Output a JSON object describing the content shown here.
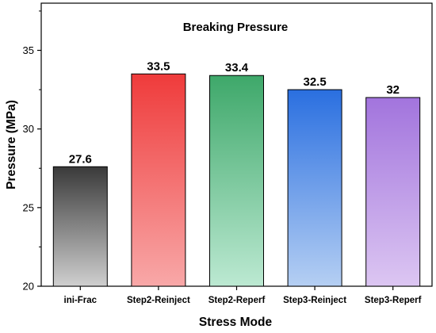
{
  "chart_data": {
    "type": "bar",
    "title": "Breaking Pressure",
    "xlabel": "Stress Mode",
    "ylabel": "Pressure (MPa)",
    "ylim": [
      20,
      38
    ],
    "yticks": [
      20,
      25,
      30,
      35
    ],
    "categories": [
      "ini-Frac",
      "Step2-Reinject",
      "Step2-Reperf",
      "Step3-Reinject",
      "Step3-Reperf"
    ],
    "values": [
      27.6,
      33.5,
      33.4,
      32.5,
      32
    ],
    "value_labels": [
      "27.6",
      "33.5",
      "33.4",
      "32.5",
      "32"
    ],
    "bar_colors": [
      {
        "top": "#3a3a3a",
        "bottom": "#cfcfcf"
      },
      {
        "top": "#ef3b3b",
        "bottom": "#f8a8a8"
      },
      {
        "top": "#3ea86a",
        "bottom": "#bce9d2"
      },
      {
        "top": "#2a6fe0",
        "bottom": "#b5cff3"
      },
      {
        "top": "#a274dd",
        "bottom": "#dcc6f2"
      }
    ],
    "grid": false,
    "legend": "none"
  }
}
